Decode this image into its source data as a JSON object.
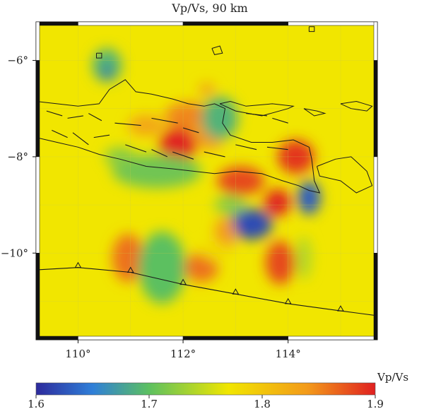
{
  "map": {
    "title": "Vp/Vs, 90 km",
    "longitude_ticks": [
      {
        "value": 110,
        "label": "110°"
      },
      {
        "value": 112,
        "label": "112°"
      },
      {
        "value": 114,
        "label": "114°"
      }
    ],
    "latitude_ticks": [
      {
        "value": -6,
        "label": "−6°"
      },
      {
        "value": -8,
        "label": "−8°"
      },
      {
        "value": -10,
        "label": "−10°"
      }
    ],
    "lon_range": [
      109.2,
      115.7
    ],
    "lat_range": [
      -11.8,
      -5.2
    ],
    "background_color": "#f1e600",
    "anomalies": [
      {
        "lon": 110.55,
        "lat": -6.1,
        "vpvs": 1.69,
        "rx": 0.28,
        "ry": 0.35
      },
      {
        "lon": 110.55,
        "lat": -6.25,
        "vpvs": 1.62,
        "rx": 0.1,
        "ry": 0.1
      },
      {
        "lon": 111.3,
        "lat": -7.35,
        "vpvs": 1.83,
        "rx": 0.35,
        "ry": 0.22
      },
      {
        "lon": 112.1,
        "lat": -7.15,
        "vpvs": 1.85,
        "rx": 0.45,
        "ry": 0.28
      },
      {
        "lon": 111.9,
        "lat": -7.75,
        "vpvs": 1.9,
        "rx": 0.35,
        "ry": 0.35
      },
      {
        "lon": 112.5,
        "lat": -7.55,
        "vpvs": 1.84,
        "rx": 0.3,
        "ry": 0.3
      },
      {
        "lon": 112.45,
        "lat": -6.6,
        "vpvs": 1.84,
        "rx": 0.15,
        "ry": 0.12
      },
      {
        "lon": 112.7,
        "lat": -7.2,
        "vpvs": 1.69,
        "rx": 0.35,
        "ry": 0.45
      },
      {
        "lon": 111.5,
        "lat": -8.3,
        "vpvs": 1.71,
        "rx": 0.85,
        "ry": 0.35
      },
      {
        "lon": 110.8,
        "lat": -8.0,
        "vpvs": 1.72,
        "rx": 0.3,
        "ry": 0.2
      },
      {
        "lon": 113.1,
        "lat": -8.5,
        "vpvs": 1.88,
        "rx": 0.45,
        "ry": 0.3
      },
      {
        "lon": 113.8,
        "lat": -8.95,
        "vpvs": 1.9,
        "rx": 0.25,
        "ry": 0.28
      },
      {
        "lon": 114.15,
        "lat": -8.0,
        "vpvs": 1.89,
        "rx": 0.35,
        "ry": 0.35
      },
      {
        "lon": 114.4,
        "lat": -8.85,
        "vpvs": 1.63,
        "rx": 0.22,
        "ry": 0.35
      },
      {
        "lon": 113.3,
        "lat": -9.4,
        "vpvs": 1.62,
        "rx": 0.4,
        "ry": 0.32
      },
      {
        "lon": 112.9,
        "lat": -9.0,
        "vpvs": 1.72,
        "rx": 0.3,
        "ry": 0.2
      },
      {
        "lon": 114.3,
        "lat": -10.1,
        "vpvs": 1.74,
        "rx": 0.15,
        "ry": 0.45
      },
      {
        "lon": 110.95,
        "lat": -10.1,
        "vpvs": 1.86,
        "rx": 0.3,
        "ry": 0.5
      },
      {
        "lon": 111.6,
        "lat": -10.15,
        "vpvs": 1.61,
        "rx": 0.3,
        "ry": 0.55
      },
      {
        "lon": 111.6,
        "lat": -10.3,
        "vpvs": 1.7,
        "rx": 0.45,
        "ry": 0.75
      },
      {
        "lon": 112.35,
        "lat": -10.3,
        "vpvs": 1.86,
        "rx": 0.32,
        "ry": 0.3
      },
      {
        "lon": 112.8,
        "lat": -9.6,
        "vpvs": 1.84,
        "rx": 0.2,
        "ry": 0.35
      },
      {
        "lon": 113.85,
        "lat": -10.2,
        "vpvs": 1.88,
        "rx": 0.28,
        "ry": 0.45
      },
      {
        "lon": 112.6,
        "lat": -9.95,
        "vpvs": 1.78,
        "rx": 0.25,
        "ry": 0.2
      }
    ],
    "coastlines": [
      [
        [
          109.2,
          -6.85
        ],
        [
          109.6,
          -6.9
        ],
        [
          110.0,
          -6.95
        ],
        [
          110.4,
          -6.9
        ],
        [
          110.6,
          -6.6
        ],
        [
          110.9,
          -6.4
        ],
        [
          111.1,
          -6.65
        ],
        [
          111.4,
          -6.7
        ],
        [
          111.8,
          -6.8
        ],
        [
          112.1,
          -6.9
        ],
        [
          112.4,
          -6.95
        ],
        [
          112.6,
          -6.9
        ],
        [
          112.8,
          -7.0
        ],
        [
          112.75,
          -7.3
        ],
        [
          112.9,
          -7.55
        ],
        [
          113.3,
          -7.7
        ],
        [
          113.7,
          -7.7
        ],
        [
          114.1,
          -7.65
        ],
        [
          114.4,
          -7.8
        ],
        [
          114.45,
          -8.05
        ],
        [
          114.5,
          -8.5
        ],
        [
          114.6,
          -8.75
        ],
        [
          114.4,
          -8.7
        ],
        [
          114.2,
          -8.6
        ],
        [
          113.9,
          -8.5
        ],
        [
          113.5,
          -8.35
        ],
        [
          113.0,
          -8.3
        ],
        [
          112.6,
          -8.35
        ],
        [
          112.2,
          -8.3
        ],
        [
          111.8,
          -8.25
        ],
        [
          111.3,
          -8.2
        ],
        [
          110.8,
          -8.05
        ],
        [
          110.4,
          -7.95
        ],
        [
          110.0,
          -7.8
        ],
        [
          109.6,
          -7.7
        ],
        [
          109.2,
          -7.6
        ]
      ],
      [
        [
          112.7,
          -6.9
        ],
        [
          113.0,
          -7.05
        ],
        [
          113.5,
          -7.15
        ],
        [
          114.0,
          -7.0
        ],
        [
          114.1,
          -6.95
        ],
        [
          113.7,
          -6.9
        ],
        [
          113.2,
          -6.95
        ],
        [
          112.9,
          -6.85
        ],
        [
          112.7,
          -6.9
        ]
      ],
      [
        [
          114.55,
          -8.2
        ],
        [
          114.9,
          -8.05
        ],
        [
          115.2,
          -8.0
        ],
        [
          115.5,
          -8.3
        ],
        [
          115.6,
          -8.6
        ],
        [
          115.3,
          -8.75
        ],
        [
          115.0,
          -8.5
        ],
        [
          114.6,
          -8.4
        ],
        [
          114.55,
          -8.2
        ]
      ],
      [
        [
          115.0,
          -6.9
        ],
        [
          115.3,
          -6.85
        ],
        [
          115.6,
          -6.95
        ],
        [
          115.5,
          -7.05
        ],
        [
          115.2,
          -7.0
        ],
        [
          115.0,
          -6.9
        ]
      ],
      [
        [
          114.3,
          -7.0
        ],
        [
          114.55,
          -7.05
        ],
        [
          114.7,
          -7.1
        ],
        [
          114.5,
          -7.15
        ],
        [
          114.3,
          -7.0
        ]
      ],
      [
        [
          112.55,
          -5.75
        ],
        [
          112.7,
          -5.7
        ],
        [
          112.75,
          -5.85
        ],
        [
          112.6,
          -5.88
        ],
        [
          112.55,
          -5.75
        ]
      ],
      [
        [
          110.35,
          -5.85
        ],
        [
          110.45,
          -5.85
        ],
        [
          110.45,
          -5.95
        ],
        [
          110.35,
          -5.95
        ],
        [
          110.35,
          -5.85
        ]
      ],
      [
        [
          114.4,
          -5.3
        ],
        [
          114.5,
          -5.3
        ],
        [
          114.5,
          -5.4
        ],
        [
          114.4,
          -5.4
        ],
        [
          114.4,
          -5.3
        ]
      ]
    ],
    "faults": [
      [
        [
          109.4,
          -7.05
        ],
        [
          109.7,
          -7.15
        ]
      ],
      [
        [
          109.8,
          -7.2
        ],
        [
          110.1,
          -7.15
        ]
      ],
      [
        [
          110.2,
          -7.1
        ],
        [
          110.45,
          -7.25
        ]
      ],
      [
        [
          109.5,
          -7.45
        ],
        [
          109.8,
          -7.6
        ]
      ],
      [
        [
          109.9,
          -7.5
        ],
        [
          110.2,
          -7.75
        ]
      ],
      [
        [
          110.3,
          -7.6
        ],
        [
          110.6,
          -7.55
        ]
      ],
      [
        [
          110.7,
          -7.3
        ],
        [
          111.2,
          -7.35
        ]
      ],
      [
        [
          111.4,
          -7.2
        ],
        [
          111.9,
          -7.3
        ]
      ],
      [
        [
          112.0,
          -7.4
        ],
        [
          112.3,
          -7.5
        ]
      ],
      [
        [
          110.9,
          -7.75
        ],
        [
          111.3,
          -7.9
        ]
      ],
      [
        [
          111.4,
          -7.85
        ],
        [
          111.7,
          -8.0
        ]
      ],
      [
        [
          111.8,
          -7.9
        ],
        [
          112.2,
          -8.05
        ]
      ],
      [
        [
          112.4,
          -7.9
        ],
        [
          112.8,
          -8.0
        ]
      ],
      [
        [
          113.0,
          -7.75
        ],
        [
          113.4,
          -7.85
        ]
      ],
      [
        [
          113.6,
          -7.8
        ],
        [
          114.0,
          -7.85
        ]
      ],
      [
        [
          113.2,
          -7.1
        ],
        [
          113.6,
          -7.15
        ]
      ],
      [
        [
          113.7,
          -7.2
        ],
        [
          114.0,
          -7.3
        ]
      ]
    ],
    "trench": [
      [
        109.2,
        -10.35
      ],
      [
        110.0,
        -10.3
      ],
      [
        111.0,
        -10.4
      ],
      [
        112.0,
        -10.65
      ],
      [
        113.0,
        -10.85
      ],
      [
        114.0,
        -11.05
      ],
      [
        115.0,
        -11.2
      ],
      [
        115.7,
        -11.3
      ]
    ],
    "trench_triangles": [
      110.0,
      111.0,
      112.0,
      113.0,
      114.0,
      115.0
    ]
  },
  "colorbar": {
    "label": "Vp/Vs",
    "min": 1.6,
    "max": 1.9,
    "ticks": [
      {
        "value": 1.6,
        "label": "1.6"
      },
      {
        "value": 1.7,
        "label": "1.7"
      },
      {
        "value": 1.8,
        "label": "1.8"
      },
      {
        "value": 1.9,
        "label": "1.9"
      }
    ],
    "stops": [
      {
        "value": 1.6,
        "color": "#2d2a9c"
      },
      {
        "value": 1.65,
        "color": "#2f7fd8"
      },
      {
        "value": 1.7,
        "color": "#5cc060"
      },
      {
        "value": 1.77,
        "color": "#f1e600"
      },
      {
        "value": 1.84,
        "color": "#f39a1a"
      },
      {
        "value": 1.9,
        "color": "#e02020"
      }
    ]
  }
}
